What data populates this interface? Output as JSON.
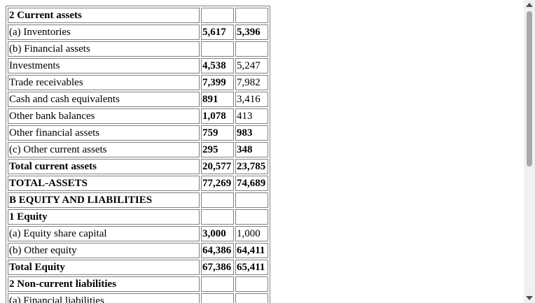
{
  "rows": [
    {
      "label": "2 Current assets",
      "v1": "",
      "v2": "",
      "bold_label": true
    },
    {
      "label": "(a) Inventories",
      "v1": "5,617",
      "v2": "5,396",
      "bold_v1": true,
      "bold_v2": true
    },
    {
      "label": "(b) Financial assets",
      "v1": "",
      "v2": ""
    },
    {
      "label": "Investments",
      "v1": "4,538",
      "v2": "5,247",
      "bold_v1": true
    },
    {
      "label": "Trade receivables",
      "v1": "7,399",
      "v2": "7,982",
      "bold_v1": true
    },
    {
      "label": "Cash and cash equivalents",
      "v1": "891",
      "v2": "3,416",
      "bold_v1": true
    },
    {
      "label": "Other bank balances",
      "v1": "1,078",
      "v2": "413",
      "bold_v1": true
    },
    {
      "label": "Other financial assets",
      "v1": "759",
      "v2": "983",
      "bold_v1": true,
      "bold_v2": true
    },
    {
      "label": "(c) Other current assets",
      "v1": "295",
      "v2": "348",
      "bold_v1": true,
      "bold_v2": true
    },
    {
      "label": "Total current assets",
      "v1": "20,577",
      "v2": "23,785",
      "bold_label": true,
      "bold_v1": true,
      "bold_v2": true
    },
    {
      "label": "TOTAL-ASSETS",
      "v1": "77,269",
      "v2": "74,689",
      "bold_label": true,
      "bold_v1": true,
      "bold_v2": true
    },
    {
      "label": "B EQUITY AND LIABILITIES",
      "v1": "",
      "v2": "",
      "bold_label": true
    },
    {
      "label": "1 Equity",
      "v1": "",
      "v2": "",
      "bold_label": true
    },
    {
      "label": "(a) Equity share capital",
      "v1": "3,000",
      "v2": "1,000",
      "bold_v1": true
    },
    {
      "label": "(b) Other equity",
      "v1": "64,386",
      "v2": "64,411",
      "bold_v1": true,
      "bold_v2": true
    },
    {
      "label": "Total Equity",
      "v1": "67,386",
      "v2": "65,411",
      "bold_label": true,
      "bold_v1": true,
      "bold_v2": true
    },
    {
      "label": "2 Non-current liabilities",
      "v1": "",
      "v2": "",
      "bold_label": true
    },
    {
      "label": "(a) Financial liabilities",
      "v1": "",
      "v2": ""
    }
  ],
  "scrollbar": {
    "up_icon": "triangle-up-icon",
    "down_icon": "triangle-down-icon"
  }
}
